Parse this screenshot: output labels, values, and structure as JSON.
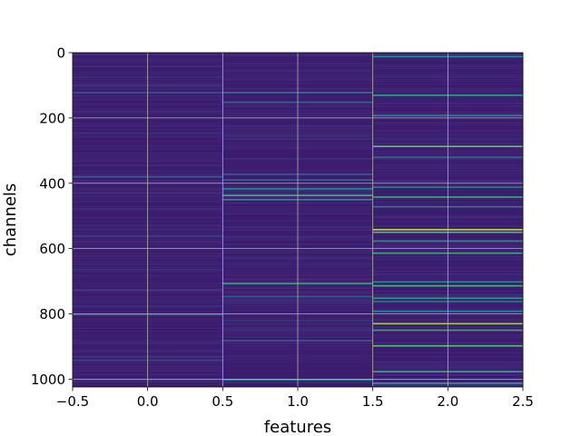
{
  "chart_data": {
    "type": "heatmap",
    "title": "",
    "xlabel": "features",
    "ylabel": "channels",
    "xlim": [
      -0.5,
      2.5
    ],
    "ylim": [
      1024,
      0
    ],
    "x_ticks": [
      -0.5,
      0.0,
      0.5,
      1.0,
      1.5,
      2.0,
      2.5
    ],
    "x_tick_labels": [
      "−0.5",
      "0.0",
      "0.5",
      "1.0",
      "1.5",
      "2.0",
      "2.5"
    ],
    "y_ticks": [
      0,
      200,
      400,
      600,
      800,
      1000
    ],
    "y_tick_labels": [
      "0",
      "200",
      "400",
      "600",
      "800",
      "1000"
    ],
    "grid": true,
    "colormap": "viridis",
    "columns": [
      0,
      1,
      2
    ],
    "rows": 1024,
    "base_color": "#3b1c6e",
    "highlights": [
      {
        "col": 0,
        "row": 120,
        "value": 0.25
      },
      {
        "col": 0,
        "row": 378,
        "value": 0.3
      },
      {
        "col": 0,
        "row": 560,
        "value": 0.2
      },
      {
        "col": 0,
        "row": 725,
        "value": 0.2
      },
      {
        "col": 0,
        "row": 800,
        "value": 0.3
      },
      {
        "col": 0,
        "row": 940,
        "value": 0.2
      },
      {
        "col": 1,
        "row": 120,
        "value": 0.4
      },
      {
        "col": 1,
        "row": 150,
        "value": 0.3
      },
      {
        "col": 1,
        "row": 370,
        "value": 0.3
      },
      {
        "col": 1,
        "row": 388,
        "value": 0.35
      },
      {
        "col": 1,
        "row": 415,
        "value": 0.5
      },
      {
        "col": 1,
        "row": 435,
        "value": 0.65
      },
      {
        "col": 1,
        "row": 448,
        "value": 0.5
      },
      {
        "col": 1,
        "row": 705,
        "value": 0.6
      },
      {
        "col": 1,
        "row": 745,
        "value": 0.3
      },
      {
        "col": 1,
        "row": 880,
        "value": 0.3
      },
      {
        "col": 1,
        "row": 1000,
        "value": 0.5
      },
      {
        "col": 2,
        "row": 10,
        "value": 0.5
      },
      {
        "col": 2,
        "row": 128,
        "value": 0.55
      },
      {
        "col": 2,
        "row": 190,
        "value": 0.45
      },
      {
        "col": 2,
        "row": 285,
        "value": 0.75
      },
      {
        "col": 2,
        "row": 318,
        "value": 0.35
      },
      {
        "col": 2,
        "row": 410,
        "value": 0.45
      },
      {
        "col": 2,
        "row": 440,
        "value": 0.6
      },
      {
        "col": 2,
        "row": 470,
        "value": 0.4
      },
      {
        "col": 2,
        "row": 540,
        "value": 0.9
      },
      {
        "col": 2,
        "row": 548,
        "value": 0.7
      },
      {
        "col": 2,
        "row": 575,
        "value": 0.5
      },
      {
        "col": 2,
        "row": 612,
        "value": 0.6
      },
      {
        "col": 2,
        "row": 700,
        "value": 0.5
      },
      {
        "col": 2,
        "row": 712,
        "value": 0.65
      },
      {
        "col": 2,
        "row": 750,
        "value": 0.55
      },
      {
        "col": 2,
        "row": 760,
        "value": 0.4
      },
      {
        "col": 2,
        "row": 790,
        "value": 0.5
      },
      {
        "col": 2,
        "row": 828,
        "value": 0.85
      },
      {
        "col": 2,
        "row": 848,
        "value": 0.6
      },
      {
        "col": 2,
        "row": 896,
        "value": 0.7
      },
      {
        "col": 2,
        "row": 975,
        "value": 0.6
      },
      {
        "col": 2,
        "row": 1010,
        "value": 0.55
      }
    ]
  }
}
